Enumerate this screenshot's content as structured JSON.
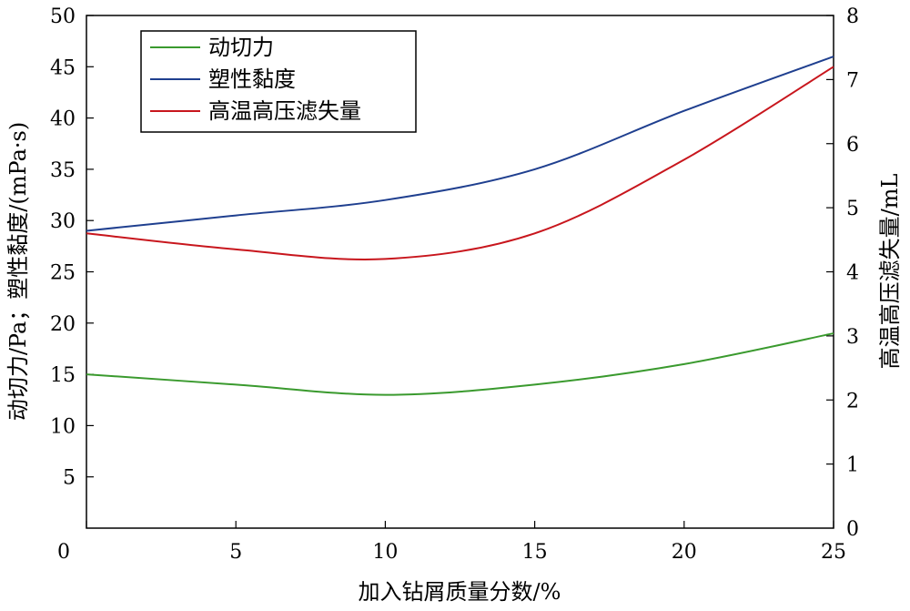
{
  "chart_data": {
    "type": "line",
    "xlabel": "加入钻屑质量分数/%",
    "ylabel_left": "动切力/Pa；塑性黏度/(mPa·s)",
    "ylabel_right": "高温高压滤失量/mL",
    "xlim": [
      0,
      25
    ],
    "ylim_left": [
      0,
      50
    ],
    "ylim_right": [
      0,
      8
    ],
    "x_ticks": [
      0,
      5,
      10,
      15,
      20,
      25
    ],
    "y_left_ticks": [
      0,
      5,
      10,
      15,
      20,
      25,
      30,
      35,
      40,
      45,
      50
    ],
    "y_right_ticks": [
      0,
      1,
      2,
      3,
      4,
      5,
      6,
      7,
      8
    ],
    "x": [
      0,
      5,
      10,
      15,
      20,
      25
    ],
    "legend_position": "top-left",
    "grid": false,
    "series": [
      {
        "name": "动切力",
        "axis": "left",
        "color": "#3a9a2e",
        "values": [
          15,
          14,
          13,
          14,
          16,
          19
        ]
      },
      {
        "name": "塑性黏度",
        "axis": "left",
        "color": "#1f3f8f",
        "values": [
          29,
          30.5,
          32,
          35,
          40.7,
          46
        ]
      },
      {
        "name": "高温高压滤失量",
        "axis": "right",
        "color": "#c8161d",
        "values": [
          4.6,
          4.35,
          4.2,
          4.6,
          5.75,
          7.2
        ]
      }
    ]
  }
}
